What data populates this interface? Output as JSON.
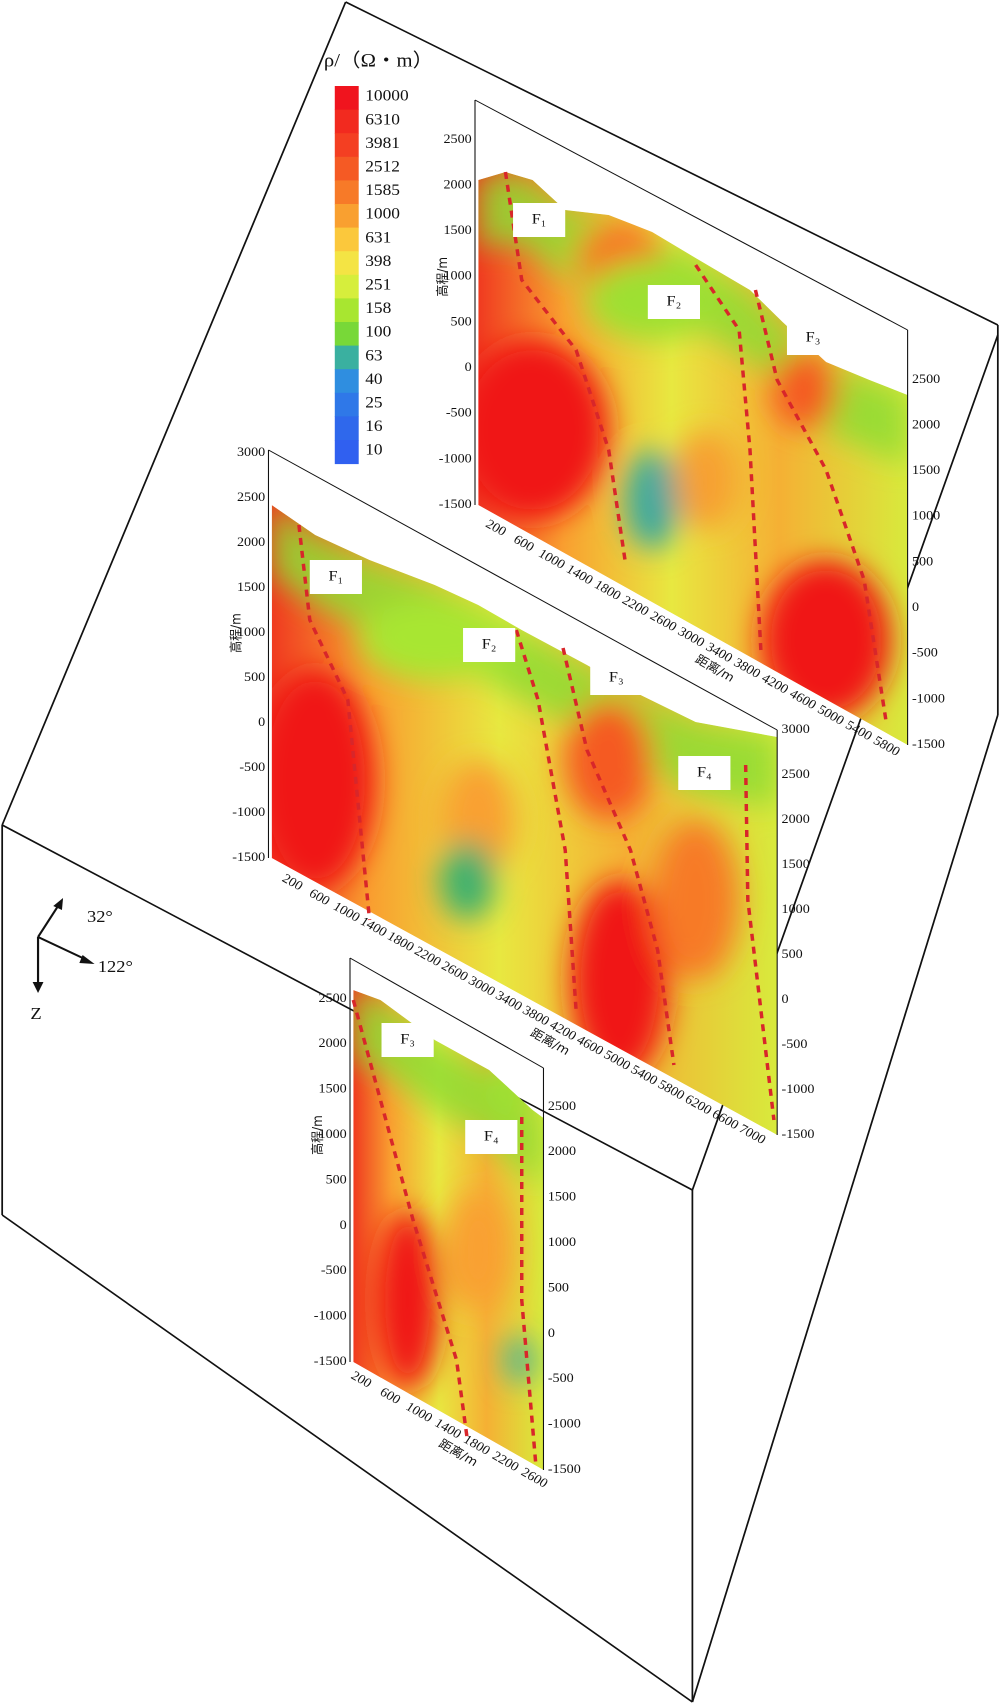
{
  "legend": {
    "title": "ρ/（Ω・m）",
    "labels": [
      10000,
      6310,
      3981,
      2512,
      1585,
      1000,
      631,
      398,
      251,
      158,
      100,
      63,
      40,
      25,
      16,
      10
    ],
    "colors": [
      "#f0141e",
      "#f22a1f",
      "#f43f22",
      "#f55a24",
      "#f77a28",
      "#f9a030",
      "#fbc83c",
      "#f4e444",
      "#d6ee3c",
      "#a8e630",
      "#78d838",
      "#3ab0a0",
      "#2f8ee0",
      "#2f78e8",
      "#2f68ec",
      "#3060f0"
    ]
  },
  "compass": {
    "north": "32°",
    "east": "122°",
    "down": "Z"
  },
  "sections": [
    {
      "y_axis_label": "高程/m",
      "x_axis_label": "距离/m",
      "left_ticks": [
        2500,
        2000,
        1500,
        1000,
        500,
        0,
        -500,
        -1000,
        -1500
      ],
      "right_ticks": [
        2500,
        2000,
        1500,
        1000,
        500,
        0,
        -500,
        -1000,
        -1500
      ],
      "x_ticks": [
        200,
        600,
        1000,
        1400,
        1800,
        2200,
        2600,
        3000,
        3400,
        3800,
        4200,
        4600,
        5000,
        5400,
        5800
      ],
      "faults": [
        "F₁",
        "F₂",
        "F₃"
      ]
    },
    {
      "y_axis_label": "高程/m",
      "x_axis_label": "距离/m",
      "left_ticks": [
        3000,
        2500,
        2000,
        1500,
        1000,
        500,
        0,
        -500,
        -1000,
        -1500
      ],
      "right_ticks": [
        3000,
        2500,
        2000,
        1500,
        1000,
        500,
        0,
        -500,
        -1000,
        -1500
      ],
      "x_ticks": [
        200,
        600,
        1000,
        1400,
        1800,
        2200,
        2600,
        3000,
        3400,
        3800,
        4200,
        4600,
        5000,
        5400,
        5800,
        6200,
        6600,
        7000
      ],
      "faults": [
        "F₁",
        "F₂",
        "F₃",
        "F₄"
      ]
    },
    {
      "y_axis_label": "高程/m",
      "x_axis_label": "距离/m",
      "left_ticks": [
        2500,
        2000,
        1500,
        1000,
        500,
        0,
        -500,
        -1000,
        -1500
      ],
      "right_ticks": [
        2500,
        2000,
        1500,
        1000,
        500,
        0,
        -500,
        -1000,
        -1500
      ],
      "x_ticks": [
        200,
        600,
        1000,
        1400,
        1800,
        2200,
        2600
      ],
      "faults": [
        "F₃",
        "F₄"
      ]
    }
  ]
}
